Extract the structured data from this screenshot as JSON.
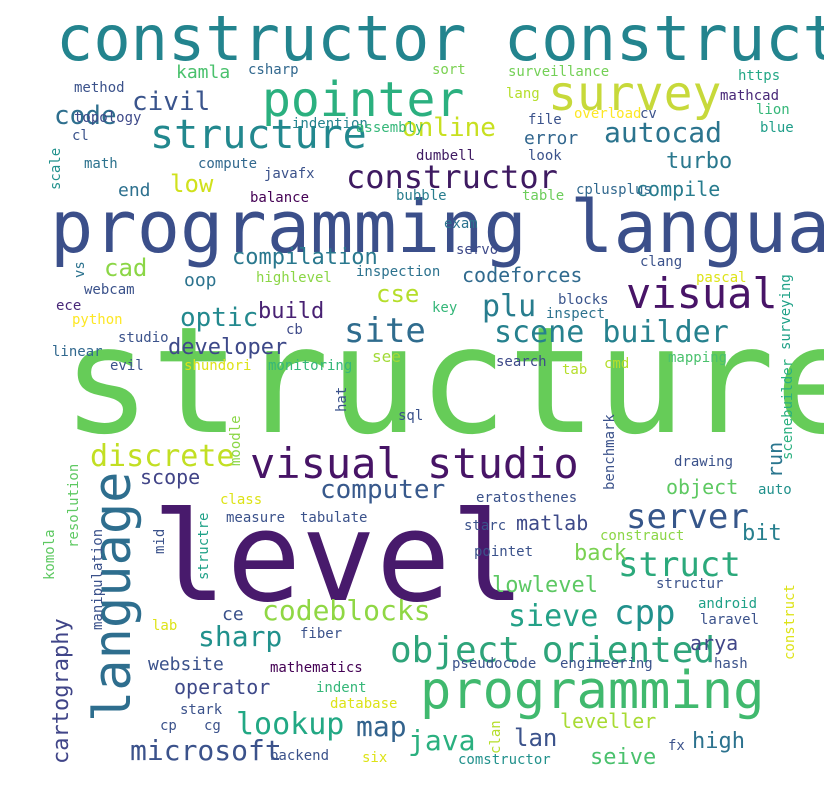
{
  "words": [
    {
      "text": "structured",
      "color": "#66cc58"
    },
    {
      "text": "level",
      "color": "#481a6c"
    },
    {
      "text": "programming language",
      "color": "#3b4f8a"
    },
    {
      "text": "constructor constructor",
      "color": "#23848e"
    },
    {
      "text": "programming",
      "color": "#40b96e"
    },
    {
      "text": "language",
      "color": "#2e6e8e"
    },
    {
      "text": "visual studio",
      "color": "#471466"
    },
    {
      "text": "survey",
      "color": "#c7d93a"
    },
    {
      "text": "pointer",
      "color": "#2bb07f"
    },
    {
      "text": "structure",
      "color": "#22888e"
    },
    {
      "text": "visual",
      "color": "#481467"
    },
    {
      "text": "object oriented",
      "color": "#2ea47a"
    },
    {
      "text": "scene builder",
      "color": "#26818e"
    },
    {
      "text": "constructor",
      "color": "#3e1a61"
    },
    {
      "text": "site",
      "color": "#2f6c8e"
    },
    {
      "text": "discrete",
      "color": "#c2df23"
    },
    {
      "text": "codeblocks",
      "color": "#8fd744"
    },
    {
      "text": "struct",
      "color": "#2ba97b"
    },
    {
      "text": "server",
      "color": "#36568a"
    },
    {
      "text": "sieve",
      "color": "#24a187"
    },
    {
      "text": "lookup",
      "color": "#22a884"
    },
    {
      "text": "cpp",
      "color": "#21918c"
    },
    {
      "text": "microsoft",
      "color": "#3b528b"
    },
    {
      "text": "computer",
      "color": "#38598c"
    },
    {
      "text": "autocad",
      "color": "#2b748e"
    },
    {
      "text": "online",
      "color": "#c8e020"
    },
    {
      "text": "civil",
      "color": "#3a548c"
    },
    {
      "text": "code",
      "color": "#2e6f8e"
    },
    {
      "text": "cartography",
      "color": "#404588"
    },
    {
      "text": "java",
      "color": "#2ab07f"
    },
    {
      "text": "map",
      "color": "#33638d"
    },
    {
      "text": "sharp",
      "color": "#21918c"
    },
    {
      "text": "optic",
      "color": "#23898e"
    },
    {
      "text": "plu",
      "color": "#287d8e"
    },
    {
      "text": "cse",
      "color": "#b5de2b"
    },
    {
      "text": "cad",
      "color": "#8bd646"
    },
    {
      "text": "low",
      "color": "#d0e11c"
    },
    {
      "text": "developer",
      "color": "#3e4989"
    },
    {
      "text": "build",
      "color": "#482173"
    },
    {
      "text": "compilation",
      "color": "#2a788e"
    },
    {
      "text": "codeforces",
      "color": "#306a8e"
    },
    {
      "text": "turbo",
      "color": "#2a788e"
    },
    {
      "text": "compile",
      "color": "#287c8e"
    },
    {
      "text": "error",
      "color": "#31668e"
    },
    {
      "text": "back",
      "color": "#7ad151"
    },
    {
      "text": "lowlevel",
      "color": "#5cc863"
    },
    {
      "text": "seive",
      "color": "#4ac16d"
    },
    {
      "text": "high",
      "color": "#2c728e"
    },
    {
      "text": "leveller",
      "color": "#a8db34"
    },
    {
      "text": "lan",
      "color": "#3b528b"
    },
    {
      "text": "arya",
      "color": "#404688"
    },
    {
      "text": "matlab",
      "color": "#3e4a89"
    },
    {
      "text": "bit",
      "color": "#277f8e"
    },
    {
      "text": "object",
      "color": "#5ec962"
    },
    {
      "text": "run",
      "color": "#2a768e"
    },
    {
      "text": "scope",
      "color": "#414487"
    },
    {
      "text": "website",
      "color": "#3b528b"
    },
    {
      "text": "operator",
      "color": "#3e4989"
    },
    {
      "text": "kamla",
      "color": "#4ac16d"
    },
    {
      "text": "oop",
      "color": "#2c738e"
    },
    {
      "text": "ce",
      "color": "#3b528b"
    },
    {
      "text": "end",
      "color": "#2d708e"
    },
    {
      "text": "see",
      "color": "#a2da37"
    },
    {
      "text": "blocks",
      "color": "#3a548c"
    },
    {
      "text": "csharp",
      "color": "#31688e"
    },
    {
      "text": "method",
      "color": "#3b528b"
    },
    {
      "text": "topology",
      "color": "#3e4a89"
    },
    {
      "text": "cl",
      "color": "#3a538b"
    },
    {
      "text": "math",
      "color": "#2c728e"
    },
    {
      "text": "indention",
      "color": "#25848e"
    },
    {
      "text": "compute",
      "color": "#31688e"
    },
    {
      "text": "javafx",
      "color": "#3b528b"
    },
    {
      "text": "assembly",
      "color": "#35b779"
    },
    {
      "text": "dumbell",
      "color": "#3e1a61"
    },
    {
      "text": "look",
      "color": "#3b528b"
    },
    {
      "text": "cplusplus",
      "color": "#31688e"
    },
    {
      "text": "balance",
      "color": "#440154"
    },
    {
      "text": "bubble",
      "color": "#287d8e"
    },
    {
      "text": "table",
      "color": "#6ccd5a"
    },
    {
      "text": "sort",
      "color": "#7ad151"
    },
    {
      "text": "surveillance",
      "color": "#73d056"
    },
    {
      "text": "https",
      "color": "#22a785"
    },
    {
      "text": "mathcad",
      "color": "#482878"
    },
    {
      "text": "lion",
      "color": "#35b779"
    },
    {
      "text": "blue",
      "color": "#1f9e89"
    },
    {
      "text": "lang",
      "color": "#b5de2b"
    },
    {
      "text": "file",
      "color": "#3b528b"
    },
    {
      "text": "overload",
      "color": "#fde725"
    },
    {
      "text": "cv",
      "color": "#3b528b"
    },
    {
      "text": "scale",
      "color": "#21918c"
    },
    {
      "text": "exam",
      "color": "#2c728e"
    },
    {
      "text": "servo",
      "color": "#3e4a89"
    },
    {
      "text": "clang",
      "color": "#3b528b"
    },
    {
      "text": "pascal",
      "color": "#dde318"
    },
    {
      "text": "surveying",
      "color": "#1fa187"
    },
    {
      "text": "highlevel",
      "color": "#8bd646"
    },
    {
      "text": "inspection",
      "color": "#2c728e"
    },
    {
      "text": "key",
      "color": "#35b779"
    },
    {
      "text": "inspect",
      "color": "#2c728e"
    },
    {
      "text": "webcam",
      "color": "#3b528b"
    },
    {
      "text": "vs",
      "color": "#2c728e"
    },
    {
      "text": "ece",
      "color": "#482878"
    },
    {
      "text": "python",
      "color": "#fde725"
    },
    {
      "text": "cb",
      "color": "#3e4a89"
    },
    {
      "text": "studio",
      "color": "#3b528b"
    },
    {
      "text": "linear",
      "color": "#31688e"
    },
    {
      "text": "evil",
      "color": "#3b528b"
    },
    {
      "text": "shundori",
      "color": "#dde318"
    },
    {
      "text": "monitoring",
      "color": "#35b779"
    },
    {
      "text": "search",
      "color": "#3e4a89"
    },
    {
      "text": "tab",
      "color": "#b5de2b"
    },
    {
      "text": "cmd",
      "color": "#b5de2b"
    },
    {
      "text": "mapping",
      "color": "#4ac16d"
    },
    {
      "text": "scenebuilder",
      "color": "#2ab07f"
    },
    {
      "text": "hat",
      "color": "#3b528b"
    },
    {
      "text": "sql",
      "color": "#3b528b"
    },
    {
      "text": "moodle",
      "color": "#8bd646"
    },
    {
      "text": "benchmark",
      "color": "#3b528b"
    },
    {
      "text": "drawing",
      "color": "#3b528b"
    },
    {
      "text": "auto",
      "color": "#21918c"
    },
    {
      "text": "resolution",
      "color": "#5ec962"
    },
    {
      "text": "class",
      "color": "#dde318"
    },
    {
      "text": "measure",
      "color": "#3b528b"
    },
    {
      "text": "tabulate",
      "color": "#3b528b"
    },
    {
      "text": "eratosthenes",
      "color": "#3b528b"
    },
    {
      "text": "komola",
      "color": "#5ec962"
    },
    {
      "text": "manipulation",
      "color": "#3b528b"
    },
    {
      "text": "mid",
      "color": "#3b528b"
    },
    {
      "text": "structre",
      "color": "#1fa187"
    },
    {
      "text": "starc",
      "color": "#3b528b"
    },
    {
      "text": "constrauct",
      "color": "#8bd646"
    },
    {
      "text": "pointet",
      "color": "#3b528b"
    },
    {
      "text": "structur",
      "color": "#3b528b"
    },
    {
      "text": "construct",
      "color": "#dde318"
    },
    {
      "text": "android",
      "color": "#1fa187"
    },
    {
      "text": "laravel",
      "color": "#3b528b"
    },
    {
      "text": "lab",
      "color": "#dde318"
    },
    {
      "text": "fiber",
      "color": "#3b528b"
    },
    {
      "text": "mathematics",
      "color": "#440154"
    },
    {
      "text": "pseudocode",
      "color": "#3b528b"
    },
    {
      "text": "engineering",
      "color": "#3b528b"
    },
    {
      "text": "hash",
      "color": "#3b528b"
    },
    {
      "text": "indent",
      "color": "#35b779"
    },
    {
      "text": "database",
      "color": "#dde318"
    },
    {
      "text": "stark",
      "color": "#3b528b"
    },
    {
      "text": "cp",
      "color": "#3b528b"
    },
    {
      "text": "cg",
      "color": "#3b528b"
    },
    {
      "text": "clan",
      "color": "#b5de2b"
    },
    {
      "text": "fx",
      "color": "#3b528b"
    },
    {
      "text": "backend",
      "color": "#3b528b"
    },
    {
      "text": "six",
      "color": "#dde318"
    },
    {
      "text": "comstructor",
      "color": "#21918c"
    }
  ]
}
